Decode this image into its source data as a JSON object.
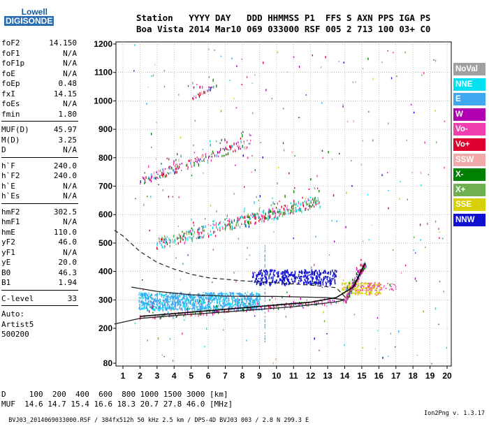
{
  "logo": {
    "line1": "Lowell",
    "line2": "DIGISONDE"
  },
  "header": {
    "row1": "Station   YYYY DAY   DDD HHMMSS P1  FFS S AXN PPS IGA PS",
    "row2": "Boa Vista 2014 Mar10 069 033000 RSF 005 2 713 100 03+ C0"
  },
  "params": {
    "group1": [
      {
        "label": "foF2",
        "value": "14.150"
      },
      {
        "label": "foF1",
        "value": "N/A"
      },
      {
        "label": "foF1p",
        "value": "N/A"
      },
      {
        "label": "foE",
        "value": "N/A"
      },
      {
        "label": "foEp",
        "value": "0.48"
      },
      {
        "label": "fxI",
        "value": "14.15"
      },
      {
        "label": "foEs",
        "value": "N/A"
      },
      {
        "label": "fmin",
        "value": "1.80"
      }
    ],
    "group2": [
      {
        "label": "MUF(D)",
        "value": "45.97"
      },
      {
        "label": "M(D)",
        "value": "3.25"
      },
      {
        "label": "D",
        "value": "N/A"
      }
    ],
    "group3": [
      {
        "label": "h`F",
        "value": "240.0"
      },
      {
        "label": "h`F2",
        "value": "240.0"
      },
      {
        "label": "h`E",
        "value": "N/A"
      },
      {
        "label": "h`Es",
        "value": "N/A"
      }
    ],
    "group4": [
      {
        "label": "hmF2",
        "value": "302.5"
      },
      {
        "label": "hmF1",
        "value": "N/A"
      },
      {
        "label": "hmE",
        "value": "110.0"
      },
      {
        "label": "yF2",
        "value": "46.0"
      },
      {
        "label": "yF1",
        "value": "N/A"
      },
      {
        "label": "yE",
        "value": "20.0"
      },
      {
        "label": "B0",
        "value": "46.3"
      },
      {
        "label": "B1",
        "value": "1.94"
      }
    ],
    "clevel": {
      "label": "C-level",
      "value": "33"
    },
    "auto": "Auto:",
    "artist": "Artist5",
    "code": "500200"
  },
  "legend": [
    {
      "name": "NoVal",
      "color": "#a0a0a0"
    },
    {
      "name": "NNE",
      "color": "#00e0f0"
    },
    {
      "name": "E",
      "color": "#40a8f0"
    },
    {
      "name": "W",
      "color": "#b000b0"
    },
    {
      "name": "Vo-",
      "color": "#f040b0"
    },
    {
      "name": "Vo+",
      "color": "#e00030"
    },
    {
      "name": "SSW",
      "color": "#f0a8a8"
    },
    {
      "name": "X-",
      "color": "#008000"
    },
    {
      "name": "X+",
      "color": "#70b050"
    },
    {
      "name": "SSE",
      "color": "#d8d000"
    },
    {
      "name": "NNW",
      "color": "#1010d0"
    }
  ],
  "muf": {
    "row1": "D     100  200  400  600  800 1000 1500 3000 [km]",
    "row2": "MUF  14.6 14.7 15.4 16.6 18.3 20.7 27.8 46.0 [MHz]"
  },
  "footer": {
    "left": "BVJ03_2014069033000.RSF / 384fx512h 50 kHz 2.5 km / DPS-4D BVJ03 003 / 2.8 N 299.3 E",
    "right": "Ion2Png v. 1.3.17"
  },
  "chart_data": {
    "type": "scatter",
    "x_ticks": [
      1,
      2,
      3,
      4,
      5,
      6,
      7,
      8,
      9,
      10,
      11,
      12,
      13,
      14,
      15,
      16,
      17,
      18,
      19,
      20
    ],
    "y_ticks": [
      80,
      200,
      300,
      400,
      500,
      600,
      700,
      800,
      900,
      1000,
      1100,
      1200
    ],
    "xlim": [
      0.5,
      20.2
    ],
    "ylim": [
      80,
      1210
    ],
    "grid": true,
    "series": [
      {
        "name": "NoVal",
        "color": "#a0a0a0",
        "description_range": {
          "x": [
            1.5,
            20
          ],
          "y": [
            80,
            1200
          ]
        }
      },
      {
        "name": "E",
        "color": "#40a8f0",
        "cluster": {
          "x": [
            1.9,
            9
          ],
          "y": [
            270,
            330
          ]
        }
      },
      {
        "name": "NNW",
        "color": "#1010d0",
        "cluster": {
          "x": [
            8.5,
            13.5
          ],
          "y": [
            360,
            410
          ]
        }
      },
      {
        "name": "SSE",
        "color": "#d8d000",
        "cluster": {
          "x": [
            13.8,
            16
          ],
          "y": [
            320,
            360
          ]
        }
      },
      {
        "name": "Vo+",
        "color": "#e00030",
        "trace_O1": [
          [
            1.9,
            240
          ],
          [
            14,
            300
          ],
          [
            15.2,
            430
          ]
        ]
      },
      {
        "name": "Vo+",
        "color": "#e00030",
        "trace_O2": [
          [
            3,
            500
          ],
          [
            12.5,
            650
          ]
        ]
      },
      {
        "name": "Vo+",
        "color": "#e00030",
        "trace_O3": [
          [
            2,
            720
          ],
          [
            8.5,
            860
          ]
        ]
      },
      {
        "name": "Vo+",
        "color": "#e00030",
        "trace_O4": [
          [
            5,
            1010
          ],
          [
            6.6,
            1060
          ]
        ]
      }
    ],
    "profile_solid": [
      [
        0.5,
        215
      ],
      [
        2,
        235
      ],
      [
        4,
        245
      ],
      [
        8,
        262
      ],
      [
        11,
        276
      ],
      [
        12.5,
        286
      ],
      [
        13.5,
        293
      ],
      [
        14.0,
        300
      ],
      [
        13.0,
        308
      ],
      [
        10,
        312
      ],
      [
        7,
        313
      ],
      [
        5,
        318
      ],
      [
        3,
        330
      ],
      [
        1.5,
        345
      ]
    ],
    "profile_dashed": [
      [
        0.5,
        545
      ],
      [
        1,
        525
      ],
      [
        2,
        470
      ],
      [
        3,
        432
      ],
      [
        4,
        408
      ],
      [
        5,
        390
      ],
      [
        6,
        378
      ],
      [
        8,
        367
      ],
      [
        10,
        360
      ],
      [
        12,
        352
      ],
      [
        13.5,
        343
      ],
      [
        14.1,
        305
      ]
    ],
    "trace_line": [
      [
        2,
        242
      ],
      [
        6,
        262
      ],
      [
        10,
        282
      ],
      [
        12,
        292
      ],
      [
        13.5,
        308
      ],
      [
        14.5,
        345
      ],
      [
        15.2,
        430
      ]
    ]
  }
}
